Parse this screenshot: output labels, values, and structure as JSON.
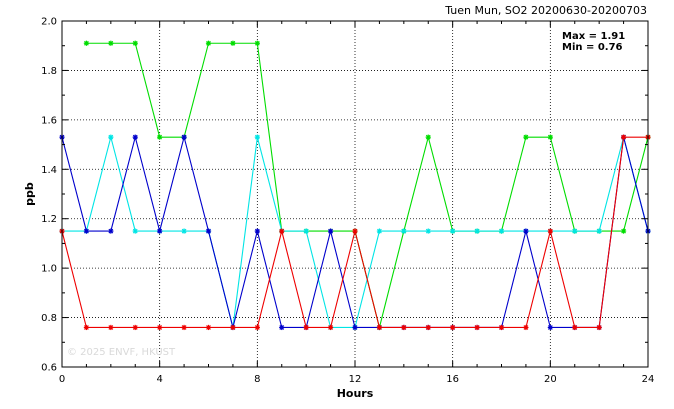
{
  "chart_data": {
    "type": "line",
    "title": "Tuen Mun, SO2 20200630-20200703",
    "xlabel": "Hours",
    "ylabel": "ppb",
    "xlim": [
      0,
      24
    ],
    "ylim": [
      0.6,
      2.0
    ],
    "x_ticks": [
      "0",
      "4",
      "8",
      "12",
      "16",
      "20",
      "24"
    ],
    "y_ticks": [
      "0.6",
      "0.8",
      "1.0",
      "1.2",
      "1.4",
      "1.6",
      "1.8",
      "2.0"
    ],
    "grid": true,
    "annotations": [
      "Max = 1.91",
      "Min = 0.76"
    ],
    "watermark": "© 2025 ENVF, HKUST",
    "x": [
      0,
      1,
      2,
      3,
      4,
      5,
      6,
      7,
      8,
      9,
      10,
      11,
      12,
      13,
      14,
      15,
      16,
      17,
      18,
      19,
      20,
      21,
      22,
      23,
      24
    ],
    "series": [
      {
        "color": "#00dd00",
        "values": [
          null,
          1.91,
          1.91,
          1.91,
          1.53,
          1.53,
          1.91,
          1.91,
          1.91,
          1.15,
          1.15,
          1.15,
          1.15,
          0.76,
          1.15,
          1.53,
          1.15,
          1.15,
          1.15,
          1.53,
          1.53,
          1.15,
          1.15,
          1.15,
          1.53
        ]
      },
      {
        "color": "#00e5e5",
        "values": [
          1.15,
          1.15,
          1.53,
          1.15,
          1.15,
          1.15,
          1.15,
          0.76,
          1.53,
          1.15,
          1.15,
          0.76,
          0.76,
          1.15,
          1.15,
          1.15,
          1.15,
          1.15,
          1.15,
          1.15,
          1.15,
          1.15,
          1.15,
          1.53,
          1.15
        ]
      },
      {
        "color": "#0000cc",
        "values": [
          1.53,
          1.15,
          1.15,
          1.53,
          1.15,
          1.53,
          1.15,
          0.76,
          1.15,
          0.76,
          0.76,
          1.15,
          0.76,
          0.76,
          0.76,
          0.76,
          0.76,
          0.76,
          0.76,
          1.15,
          0.76,
          0.76,
          0.76,
          1.53,
          1.15
        ]
      },
      {
        "color": "#ee0000",
        "values": [
          1.15,
          0.76,
          0.76,
          0.76,
          0.76,
          0.76,
          0.76,
          0.76,
          0.76,
          1.15,
          0.76,
          0.76,
          1.15,
          0.76,
          0.76,
          0.76,
          0.76,
          0.76,
          0.76,
          0.76,
          1.15,
          0.76,
          0.76,
          1.53,
          1.53
        ]
      }
    ]
  }
}
